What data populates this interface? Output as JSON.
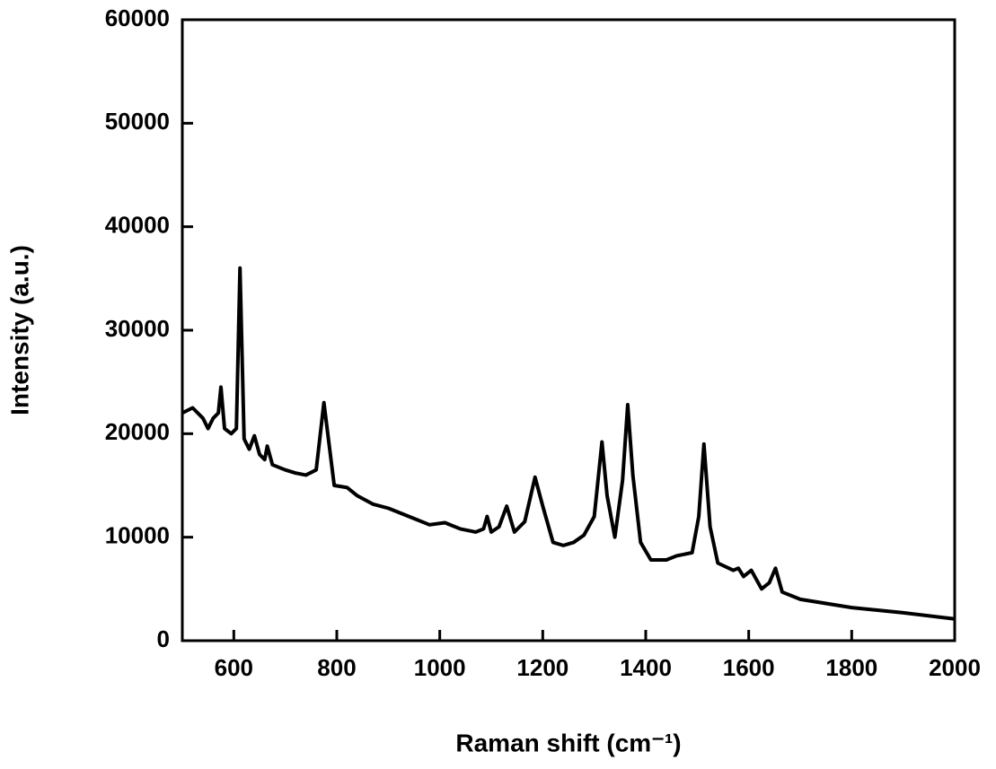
{
  "chart_data": {
    "type": "line",
    "xlabel": "Raman shift (cm⁻¹)",
    "ylabel": "Intensity (a.u.)",
    "xlim": [
      500,
      2000
    ],
    "ylim": [
      0,
      60000
    ],
    "xticks": [
      600,
      800,
      1000,
      1200,
      1400,
      1600,
      1800,
      2000
    ],
    "yticks": [
      0,
      10000,
      20000,
      30000,
      40000,
      50000,
      60000
    ],
    "series": [
      {
        "color": "#000000",
        "x": [
          500,
          520,
          540,
          550,
          560,
          570,
          575,
          582,
          595,
          605,
          612,
          620,
          630,
          640,
          650,
          660,
          665,
          675,
          700,
          720,
          740,
          760,
          775,
          785,
          795,
          820,
          840,
          870,
          900,
          950,
          980,
          1010,
          1040,
          1070,
          1085,
          1092,
          1100,
          1115,
          1130,
          1145,
          1165,
          1185,
          1200,
          1220,
          1240,
          1260,
          1280,
          1300,
          1315,
          1325,
          1340,
          1355,
          1365,
          1375,
          1390,
          1410,
          1440,
          1460,
          1490,
          1503,
          1513,
          1525,
          1540,
          1570,
          1580,
          1590,
          1605,
          1625,
          1640,
          1652,
          1665,
          1700,
          1800,
          1900,
          2000
        ],
        "values": [
          22000,
          22500,
          21500,
          20500,
          21500,
          22000,
          24500,
          20500,
          20000,
          20500,
          36000,
          19500,
          18500,
          19800,
          18000,
          17500,
          18800,
          17000,
          16500,
          16200,
          16000,
          16500,
          23000,
          19000,
          15000,
          14800,
          14000,
          13200,
          12800,
          11800,
          11200,
          11400,
          10800,
          10500,
          10800,
          12000,
          10500,
          11000,
          13000,
          10500,
          11500,
          15800,
          13000,
          9500,
          9200,
          9500,
          10200,
          12000,
          19200,
          14000,
          10000,
          15500,
          22800,
          16000,
          9500,
          7800,
          7800,
          8200,
          8500,
          12000,
          19000,
          11000,
          7500,
          6800,
          7000,
          6200,
          6800,
          5000,
          5600,
          7000,
          4700,
          4000,
          3200,
          2700,
          2100
        ]
      }
    ]
  }
}
